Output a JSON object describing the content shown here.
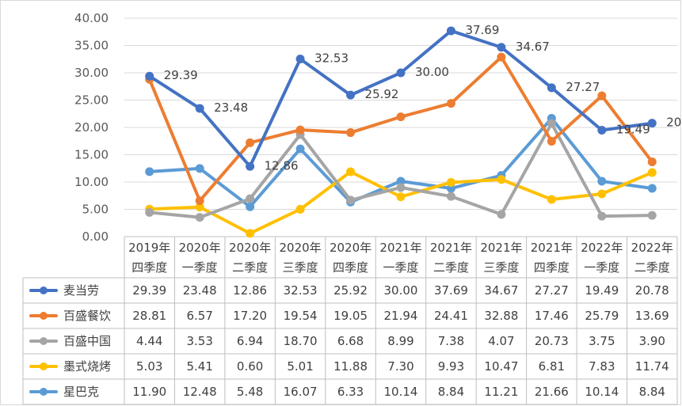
{
  "chart_data": {
    "type": "line",
    "categories": [
      [
        "2019年",
        "四季度"
      ],
      [
        "2020年",
        "一季度"
      ],
      [
        "2020年",
        "二季度"
      ],
      [
        "2020年",
        "三季度"
      ],
      [
        "2020年",
        "四季度"
      ],
      [
        "2021年",
        "一季度"
      ],
      [
        "2021年",
        "二季度"
      ],
      [
        "2021年",
        "三季度"
      ],
      [
        "2021年",
        "四季度"
      ],
      [
        "2022年",
        "一季度"
      ],
      [
        "2022年",
        "二季度"
      ]
    ],
    "ylim": [
      0,
      40
    ],
    "yticks": [
      "0.00",
      "5.00",
      "10.00",
      "15.00",
      "20.00",
      "25.00",
      "30.00",
      "35.00",
      "40.00"
    ],
    "grid": true,
    "legend": "data-table",
    "series": [
      {
        "name": "麦当劳",
        "color": "#4472c4",
        "values": [
          29.39,
          23.48,
          12.86,
          32.53,
          25.92,
          30.0,
          37.69,
          34.67,
          27.27,
          19.49,
          20.78
        ],
        "display": [
          "29.39",
          "23.48",
          "12.86",
          "32.53",
          "25.92",
          "30.00",
          "37.69",
          "34.67",
          "27.27",
          "19.49",
          "20.78"
        ],
        "labeled": true
      },
      {
        "name": "百盛餐饮",
        "color": "#ed7d31",
        "values": [
          28.81,
          6.57,
          17.2,
          19.54,
          19.05,
          21.94,
          24.41,
          32.88,
          17.46,
          25.79,
          13.69
        ],
        "display": [
          "28.81",
          "6.57",
          "17.20",
          "19.54",
          "19.05",
          "21.94",
          "24.41",
          "32.88",
          "17.46",
          "25.79",
          "13.69"
        ],
        "labeled": false
      },
      {
        "name": "百盛中国",
        "color": "#a5a5a5",
        "values": [
          4.44,
          3.53,
          6.94,
          18.7,
          6.68,
          8.99,
          7.38,
          4.07,
          20.73,
          3.75,
          3.9
        ],
        "display": [
          "4.44",
          "3.53",
          "6.94",
          "18.70",
          "6.68",
          "8.99",
          "7.38",
          "4.07",
          "20.73",
          "3.75",
          "3.90"
        ],
        "labeled": false
      },
      {
        "name": "墨式烧烤",
        "color": "#ffc000",
        "values": [
          5.03,
          5.41,
          0.6,
          5.01,
          11.88,
          7.3,
          9.93,
          10.47,
          6.81,
          7.83,
          11.74
        ],
        "display": [
          "5.03",
          "5.41",
          "0.60",
          "5.01",
          "11.88",
          "7.30",
          "9.93",
          "10.47",
          "6.81",
          "7.83",
          "11.74"
        ],
        "labeled": false
      },
      {
        "name": "星巴克",
        "color": "#5b9bd5",
        "values": [
          11.9,
          12.48,
          5.48,
          16.07,
          6.33,
          10.14,
          8.84,
          11.21,
          21.66,
          10.14,
          8.84
        ],
        "display": [
          "11.90",
          "12.48",
          "5.48",
          "16.07",
          "6.33",
          "10.14",
          "8.84",
          "11.21",
          "21.66",
          "10.14",
          "8.84"
        ],
        "labeled": false
      }
    ]
  }
}
